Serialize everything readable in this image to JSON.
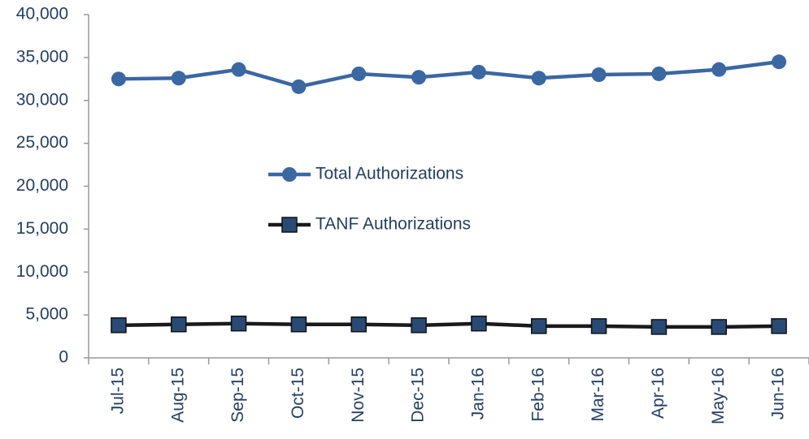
{
  "chart_data": {
    "type": "line",
    "categories": [
      "Jul-15",
      "Aug-15",
      "Sep-15",
      "Oct-15",
      "Nov-15",
      "Dec-15",
      "Jan-16",
      "Feb-16",
      "Mar-16",
      "Apr-16",
      "May-16",
      "Jun-16"
    ],
    "series": [
      {
        "name": "Total Authorizations",
        "color": "#3b67a2",
        "marker": "circle",
        "values": [
          32500,
          32600,
          33600,
          31600,
          33100,
          32700,
          33300,
          32600,
          33000,
          33100,
          33600,
          34500
        ]
      },
      {
        "name": "TANF Authorizations",
        "color": "#1a1a1a",
        "marker_color": "#284a75",
        "marker": "square",
        "values": [
          3800,
          3900,
          4000,
          3900,
          3900,
          3800,
          4000,
          3700,
          3700,
          3600,
          3600,
          3700
        ]
      }
    ],
    "ylim": [
      0,
      40000
    ],
    "yticks": [
      0,
      {
        "value": 5000,
        "label": "5,000"
      },
      {
        "value": 10000,
        "label": "10,000"
      },
      {
        "value": 15000,
        "label": "15,000"
      },
      {
        "value": 20000,
        "label": "20,000"
      },
      {
        "value": 25000,
        "label": "25,000"
      },
      {
        "value": 30000,
        "label": "30,000"
      },
      {
        "value": 35000,
        "label": "35,000"
      },
      {
        "value": 40000,
        "label": "40,000"
      }
    ],
    "grid": false,
    "legend": "center"
  }
}
